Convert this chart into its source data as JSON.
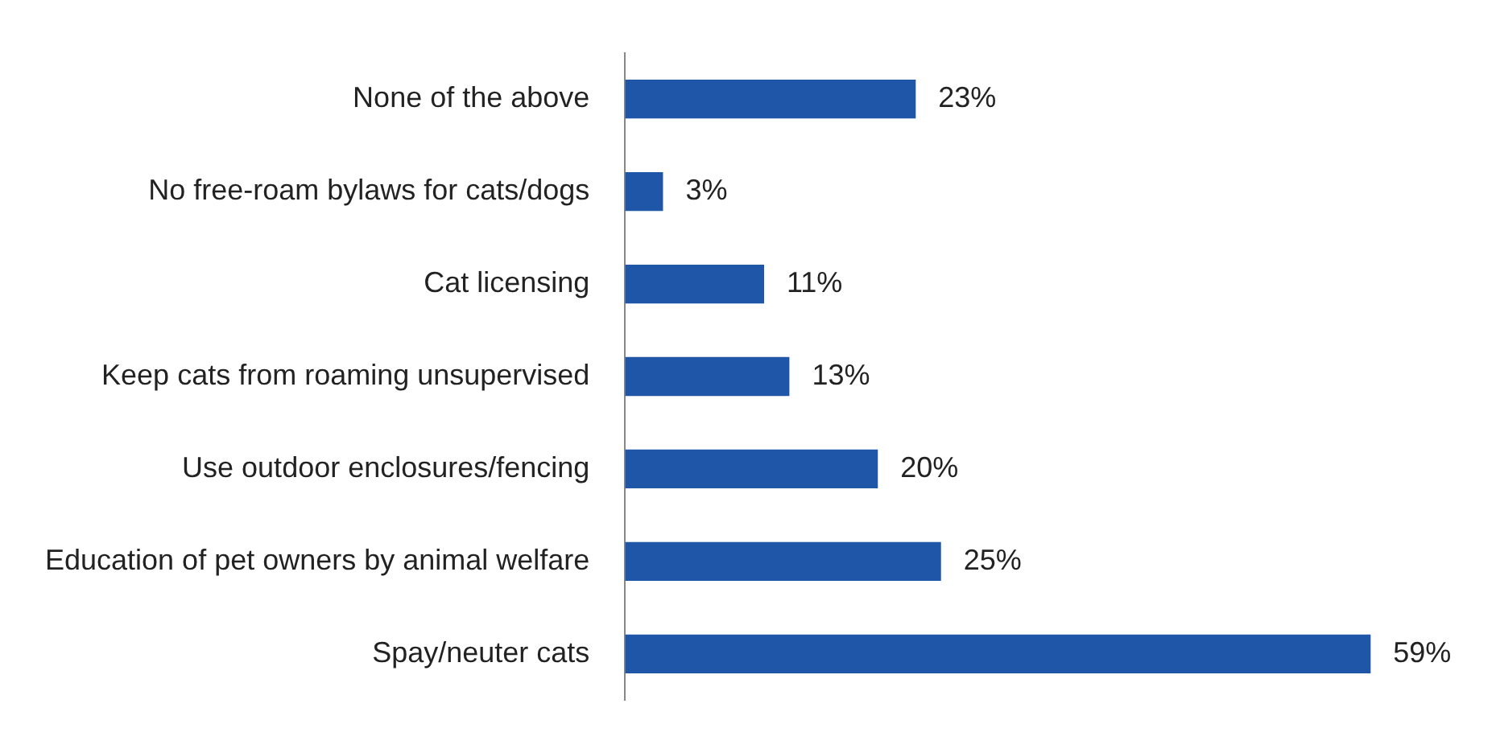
{
  "chart_data": {
    "type": "bar",
    "orientation": "horizontal",
    "categories": [
      "None of the above",
      "No free-roam bylaws for cats/dogs",
      "Cat licensing",
      "Keep cats from roaming unsupervised",
      "Use outdoor enclosures/fencing",
      "Education of pet owners by animal welfare",
      "Spay/neuter cats"
    ],
    "values": [
      23,
      3,
      11,
      13,
      20,
      25,
      59
    ],
    "value_labels": [
      "23%",
      "3%",
      "11%",
      "13%",
      "20%",
      "25%",
      "59%"
    ],
    "color": "#1f56a8",
    "legend": false,
    "tick_labels": "y"
  }
}
